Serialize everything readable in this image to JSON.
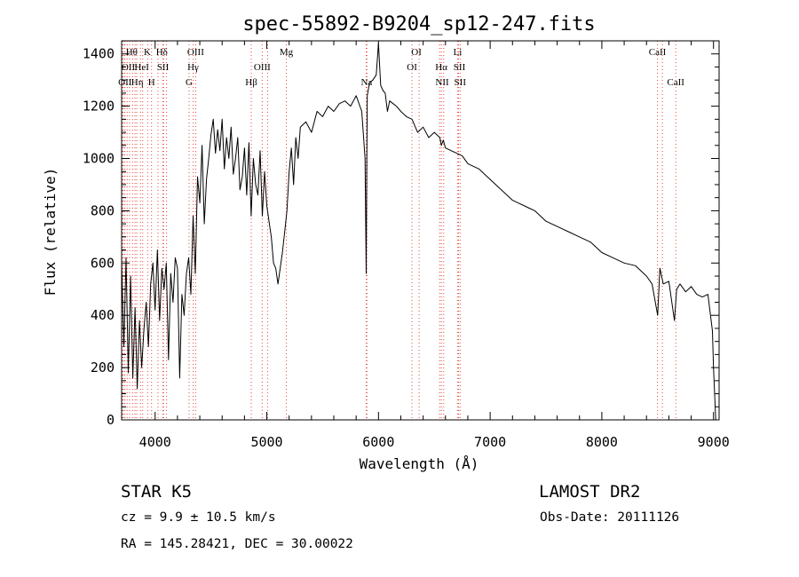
{
  "chart_data": {
    "type": "line",
    "title": "spec-55892-B9204_sp12-247.fits",
    "xlabel": "Wavelength (Å)",
    "ylabel": "Flux (relative)",
    "xlim": [
      3700,
      9050
    ],
    "ylim": [
      0,
      1450
    ],
    "xticks": [
      4000,
      5000,
      6000,
      7000,
      8000,
      9000
    ],
    "yticks": [
      0,
      200,
      400,
      600,
      800,
      1000,
      1200,
      1400
    ],
    "grid": false,
    "series": [
      {
        "x": [
          3700,
          3720,
          3740,
          3760,
          3780,
          3800,
          3820,
          3840,
          3860,
          3880,
          3900,
          3920,
          3940,
          3960,
          3980,
          4000,
          4020,
          4040,
          4060,
          4080,
          4100,
          4120,
          4140,
          4160,
          4180,
          4200,
          4220,
          4240,
          4260,
          4280,
          4300,
          4320,
          4340,
          4360,
          4380,
          4400,
          4420,
          4440,
          4460,
          4480,
          4500,
          4520,
          4540,
          4560,
          4580,
          4600,
          4620,
          4640,
          4660,
          4680,
          4700,
          4720,
          4740,
          4760,
          4780,
          4800,
          4820,
          4840,
          4860,
          4880,
          4900,
          4920,
          4940,
          4960,
          4980,
          5000,
          5020,
          5040,
          5060,
          5080,
          5100,
          5120,
          5140,
          5160,
          5180,
          5200,
          5220,
          5240,
          5260,
          5280,
          5300,
          5350,
          5400,
          5450,
          5500,
          5550,
          5600,
          5650,
          5700,
          5750,
          5800,
          5850,
          5880,
          5890,
          5896,
          5900,
          5920,
          5950,
          5980,
          6000,
          6020,
          6040,
          6060,
          6080,
          6100,
          6130,
          6160,
          6200,
          6250,
          6300,
          6350,
          6400,
          6450,
          6500,
          6550,
          6563,
          6580,
          6600,
          6650,
          6700,
          6750,
          6800,
          6850,
          6900,
          6950,
          7000,
          7050,
          7100,
          7150,
          7200,
          7250,
          7300,
          7350,
          7400,
          7500,
          7600,
          7700,
          7800,
          7900,
          8000,
          8100,
          8200,
          8300,
          8400,
          8450,
          8500,
          8520,
          8550,
          8600,
          8650,
          8670,
          8700,
          8750,
          8800,
          8850,
          8900,
          8950,
          8990,
          9000,
          9020
        ],
        "y": [
          600,
          280,
          620,
          180,
          550,
          160,
          430,
          120,
          380,
          200,
          350,
          450,
          280,
          520,
          600,
          420,
          650,
          380,
          580,
          500,
          600,
          230,
          560,
          450,
          620,
          580,
          160,
          480,
          400,
          560,
          620,
          480,
          780,
          560,
          930,
          830,
          1050,
          750,
          920,
          1000,
          1090,
          1150,
          1020,
          1110,
          1030,
          1150,
          960,
          1080,
          1000,
          1120,
          940,
          1000,
          1080,
          880,
          930,
          1040,
          860,
          1060,
          780,
          1000,
          900,
          860,
          1030,
          780,
          950,
          820,
          760,
          700,
          600,
          580,
          520,
          580,
          640,
          720,
          800,
          950,
          1040,
          900,
          1080,
          1000,
          1120,
          1140,
          1100,
          1180,
          1160,
          1200,
          1180,
          1210,
          1220,
          1200,
          1240,
          1180,
          1000,
          560,
          1000,
          1240,
          1290,
          1300,
          1320,
          1440,
          1280,
          1260,
          1250,
          1180,
          1220,
          1210,
          1200,
          1180,
          1160,
          1150,
          1100,
          1120,
          1080,
          1100,
          1080,
          1050,
          1070,
          1040,
          1030,
          1020,
          1010,
          980,
          970,
          960,
          940,
          920,
          900,
          880,
          860,
          840,
          830,
          820,
          810,
          800,
          760,
          740,
          720,
          700,
          680,
          640,
          620,
          600,
          590,
          550,
          520,
          400,
          580,
          520,
          530,
          380,
          500,
          520,
          490,
          510,
          480,
          470,
          480,
          340,
          200,
          0
        ]
      }
    ],
    "line_markers": {
      "wavelengths": [
        3705,
        3712,
        3726,
        3729,
        3750,
        3771,
        3798,
        3820,
        3835,
        3869,
        3889,
        3933,
        3968,
        4026,
        4068,
        4076,
        4102,
        4304,
        4341,
        4363,
        4861,
        4959,
        5007,
        5175,
        5890,
        5896,
        6300,
        6364,
        6548,
        6563,
        6584,
        6708,
        6717,
        6731,
        8498,
        8542,
        8662
      ],
      "labels": [
        {
          "text": "Hθ",
          "x": 3790,
          "row": 0
        },
        {
          "text": "K",
          "x": 3930,
          "row": 0
        },
        {
          "text": "Hδ",
          "x": 4060,
          "row": 0
        },
        {
          "text": "OIII",
          "x": 4363,
          "row": 0
        },
        {
          "text": "Mg",
          "x": 5175,
          "row": 0
        },
        {
          "text": "OI",
          "x": 6340,
          "row": 0
        },
        {
          "text": "Li",
          "x": 6708,
          "row": 0
        },
        {
          "text": "CaII",
          "x": 8498,
          "row": 0
        },
        {
          "text": "OII",
          "x": 3760,
          "row": 1
        },
        {
          "text": "HeI",
          "x": 3880,
          "row": 1
        },
        {
          "text": "SII",
          "x": 4070,
          "row": 1
        },
        {
          "text": "Hγ",
          "x": 4340,
          "row": 1
        },
        {
          "text": "OIII",
          "x": 4959,
          "row": 1
        },
        {
          "text": "OI",
          "x": 6300,
          "row": 1
        },
        {
          "text": "Hα",
          "x": 6563,
          "row": 1
        },
        {
          "text": "SII",
          "x": 6725,
          "row": 1
        },
        {
          "text": "OII",
          "x": 3730,
          "row": 2
        },
        {
          "text": "Hη",
          "x": 3840,
          "row": 2
        },
        {
          "text": "H",
          "x": 3968,
          "row": 2
        },
        {
          "text": "G",
          "x": 4304,
          "row": 2
        },
        {
          "text": "Hβ",
          "x": 4861,
          "row": 2
        },
        {
          "text": "Na",
          "x": 5893,
          "row": 2
        },
        {
          "text": "NII",
          "x": 6570,
          "row": 2
        },
        {
          "text": "SII",
          "x": 6731,
          "row": 2
        },
        {
          "text": "CaII",
          "x": 8662,
          "row": 2
        }
      ]
    }
  },
  "info": {
    "class_text": "STAR    K5",
    "cz_text": "cz = 9.9 ± 10.5 km/s",
    "coords_text": "RA = 145.28421, DEC =  30.00022",
    "survey_text": "LAMOST DR2",
    "obsdate_text": "Obs-Date: 20111126"
  },
  "colors": {
    "line_marker": "#e8453c",
    "spectrum": "#000000",
    "axis": "#000000"
  }
}
